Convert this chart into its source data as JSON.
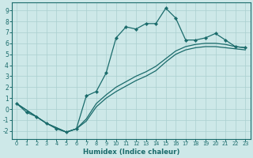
{
  "xlabel": "Humidex (Indice chaleur)",
  "xlim": [
    -0.5,
    23.5
  ],
  "ylim": [
    -2.7,
    9.7
  ],
  "xticks": [
    0,
    1,
    2,
    3,
    4,
    5,
    6,
    7,
    8,
    9,
    10,
    11,
    12,
    13,
    14,
    15,
    16,
    17,
    18,
    19,
    20,
    21,
    22,
    23
  ],
  "yticks": [
    -2,
    -1,
    0,
    1,
    2,
    3,
    4,
    5,
    6,
    7,
    8,
    9
  ],
  "bg_color": "#cde8e8",
  "line_color": "#1a6b6b",
  "grid_color": "#aacfcf",
  "main_x": [
    0,
    1,
    2,
    3,
    4,
    5,
    6,
    7,
    8,
    9,
    10,
    11,
    12,
    13,
    14,
    15,
    16,
    17,
    18,
    19,
    20,
    21,
    22,
    23
  ],
  "main_y": [
    0.5,
    -0.3,
    -0.7,
    -1.3,
    -1.8,
    -2.1,
    -1.8,
    1.2,
    1.6,
    3.3,
    6.5,
    7.5,
    7.3,
    7.8,
    7.8,
    9.2,
    8.3,
    6.3,
    6.3,
    6.5,
    6.9,
    6.3,
    5.7,
    5.6
  ],
  "band_upper_x": [
    0,
    3,
    5,
    6,
    7,
    8,
    9,
    10,
    11,
    12,
    13,
    14,
    15,
    16,
    17,
    18,
    19,
    20,
    21,
    22,
    23
  ],
  "band_upper_y": [
    0.5,
    -1.3,
    -2.1,
    -1.8,
    -0.9,
    0.5,
    1.3,
    2.0,
    2.5,
    3.0,
    3.4,
    3.9,
    4.6,
    5.3,
    5.7,
    5.9,
    6.0,
    6.0,
    5.9,
    5.7,
    5.6
  ],
  "band_lower_x": [
    0,
    3,
    5,
    6,
    7,
    8,
    9,
    10,
    11,
    12,
    13,
    14,
    15,
    16,
    17,
    18,
    19,
    20,
    21,
    22,
    23
  ],
  "band_lower_y": [
    0.5,
    -1.3,
    -2.1,
    -1.8,
    -1.1,
    0.2,
    1.0,
    1.6,
    2.1,
    2.6,
    3.0,
    3.5,
    4.3,
    5.0,
    5.4,
    5.6,
    5.7,
    5.7,
    5.6,
    5.5,
    5.4
  ]
}
